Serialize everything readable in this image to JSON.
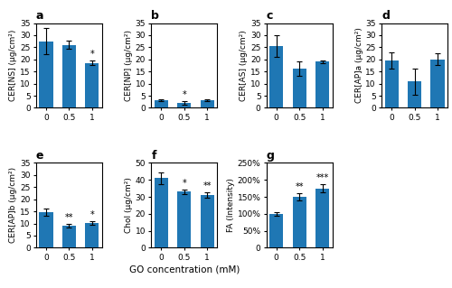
{
  "chart_data": [
    {
      "type": "bar",
      "title": "a",
      "y_label": "CER[NS] (μg/cm²)",
      "categories": [
        "0",
        "0.5",
        "1"
      ],
      "values": [
        27.5,
        26.0,
        18.5
      ],
      "errors": [
        5.5,
        1.8,
        1.0
      ],
      "annotations": [
        null,
        null,
        "*"
      ],
      "ylim": [
        0,
        35
      ],
      "yticks": [
        0,
        5,
        10,
        15,
        20,
        25,
        30,
        35
      ],
      "grid": false
    },
    {
      "type": "bar",
      "title": "b",
      "y_label": "CER[NP] (μg/cm²)",
      "categories": [
        "0",
        "0.5",
        "1"
      ],
      "values": [
        3.2,
        2.0,
        3.1
      ],
      "errors": [
        0.4,
        0.8,
        0.3
      ],
      "annotations": [
        null,
        "*",
        null
      ],
      "ylim": [
        0,
        35
      ],
      "yticks": [
        0,
        5,
        10,
        15,
        20,
        25,
        30,
        35
      ],
      "grid": false
    },
    {
      "type": "bar",
      "title": "c",
      "y_label": "CER[AS] (μg/cm²)",
      "categories": [
        "0",
        "0.5",
        "1"
      ],
      "values": [
        25.5,
        16.2,
        19.0
      ],
      "errors": [
        4.5,
        3.0,
        0.5
      ],
      "ylim": [
        0,
        35
      ],
      "yticks": [
        0,
        5,
        10,
        15,
        20,
        25,
        30,
        35
      ],
      "grid": false
    },
    {
      "type": "bar",
      "title": "d",
      "y_label": "CER[AP]a (μg/cm²)",
      "categories": [
        "0",
        "0.5",
        "1"
      ],
      "values": [
        19.5,
        10.8,
        20.0
      ],
      "errors": [
        3.5,
        5.5,
        2.5
      ],
      "ylim": [
        0,
        35
      ],
      "yticks": [
        0,
        5,
        10,
        15,
        20,
        25,
        30,
        35
      ],
      "grid": false
    },
    {
      "type": "bar",
      "title": "e",
      "y_label": "CER[AP]b (μg/cm²)",
      "categories": [
        "0",
        "0.5",
        "1"
      ],
      "values": [
        14.8,
        9.0,
        10.2
      ],
      "errors": [
        1.5,
        0.8,
        0.8
      ],
      "annotations": [
        null,
        "**",
        "*"
      ],
      "ylim": [
        0,
        35
      ],
      "yticks": [
        0,
        5,
        10,
        15,
        20,
        25,
        30,
        35
      ],
      "grid": false
    },
    {
      "type": "bar",
      "title": "f",
      "y_label": "Chol (μg/cm²)",
      "x_label": "GO concentration (mM)",
      "categories": [
        "0",
        "0.5",
        "1"
      ],
      "values": [
        41.0,
        33.0,
        31.0
      ],
      "errors": [
        3.5,
        1.5,
        1.5
      ],
      "annotations": [
        null,
        "*",
        "**"
      ],
      "ylim": [
        0,
        50
      ],
      "yticks": [
        0,
        10,
        20,
        30,
        40,
        50
      ],
      "grid": false
    },
    {
      "type": "bar",
      "title": "g",
      "y_label": "FA (Intensity)",
      "categories": [
        "0",
        "0.5",
        "1"
      ],
      "values": [
        100,
        150,
        175
      ],
      "errors": [
        5,
        10,
        12
      ],
      "annotations": [
        null,
        "**",
        "***"
      ],
      "ylim": [
        0,
        250
      ],
      "yticks": [
        0,
        {
          "value": 50,
          "label": "50%"
        },
        {
          "value": 100,
          "label": "100%"
        },
        {
          "value": 150,
          "label": "150%"
        },
        {
          "value": 200,
          "label": "200%"
        },
        {
          "value": 250,
          "label": "250%"
        }
      ],
      "grid": false
    }
  ]
}
